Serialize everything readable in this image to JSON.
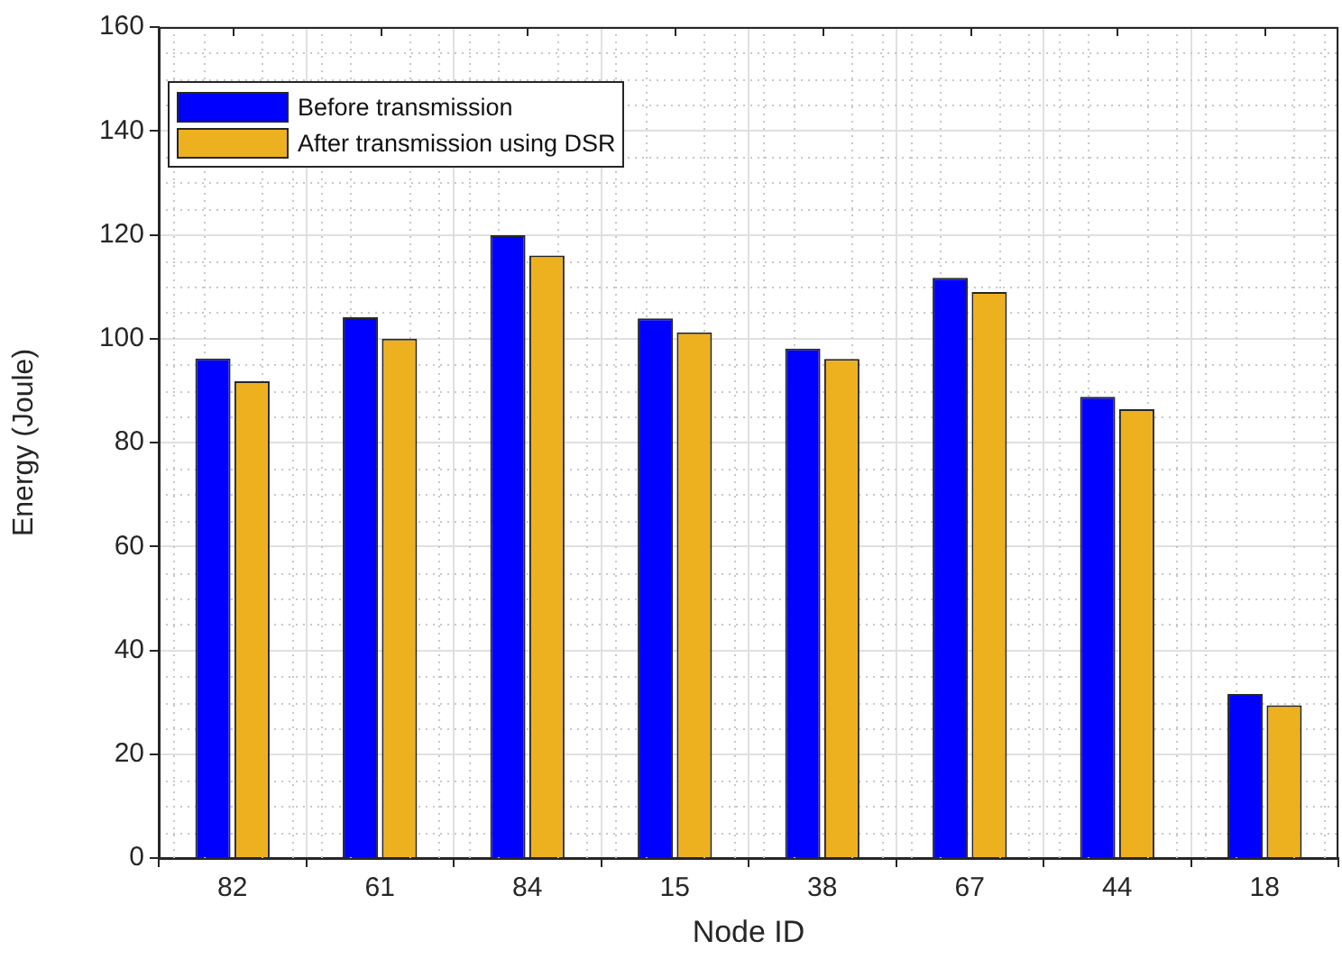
{
  "chart_data": {
    "type": "bar",
    "xlabel": "Node ID",
    "ylabel": "Energy (Joule)",
    "categories": [
      "82",
      "61",
      "84",
      "15",
      "38",
      "67",
      "44",
      "18"
    ],
    "series": [
      {
        "name": "Before transmission",
        "color": "#0000ff",
        "values": [
          96.2,
          104.1,
          119.9,
          103.9,
          98.1,
          111.7,
          88.8,
          31.6
        ]
      },
      {
        "name": "After transmission using DSR",
        "color": "#edb120",
        "values": [
          91.8,
          100,
          116,
          101.2,
          96.1,
          109,
          86.4,
          29.4
        ]
      }
    ],
    "ylim": [
      0,
      160
    ],
    "yticks": [
      0,
      20,
      40,
      60,
      80,
      100,
      120,
      140,
      160
    ],
    "grid": true,
    "legend": "top left"
  }
}
